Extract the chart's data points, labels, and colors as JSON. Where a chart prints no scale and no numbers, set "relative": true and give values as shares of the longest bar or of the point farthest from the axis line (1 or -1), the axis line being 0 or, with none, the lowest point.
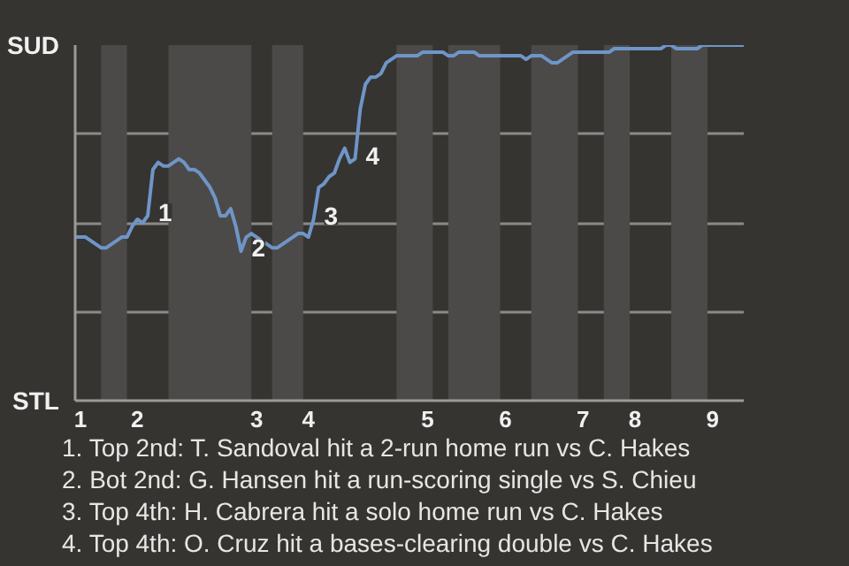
{
  "chart_data": {
    "type": "line",
    "relative": true,
    "categories": [
      null,
      "1",
      null,
      null,
      null,
      null,
      null,
      null,
      null,
      null,
      null,
      null,
      "2",
      null,
      null,
      null,
      null,
      null,
      null,
      null,
      null,
      null,
      null,
      null,
      null,
      null,
      null,
      null,
      null,
      null,
      null,
      null,
      null,
      null,
      null,
      "3",
      null,
      null,
      null,
      null,
      null,
      null,
      null,
      null,
      null,
      "4",
      null,
      null,
      null,
      null,
      null,
      null,
      null,
      null,
      null,
      null,
      null,
      null,
      null,
      null,
      null,
      null,
      null,
      null,
      null,
      null,
      null,
      null,
      "5",
      null,
      null,
      null,
      null,
      null,
      null,
      null,
      null,
      null,
      null,
      null,
      null,
      null,
      null,
      "6",
      null,
      null,
      null,
      null,
      null,
      null,
      null,
      null,
      null,
      null,
      null,
      null,
      null,
      null,
      "7",
      null,
      null,
      null,
      null,
      null,
      null,
      null,
      null,
      null,
      "8",
      null,
      null,
      null,
      null,
      null,
      null,
      null,
      null,
      null,
      null,
      null,
      null,
      null,
      null,
      "9",
      null,
      null,
      null,
      null,
      null,
      null
    ],
    "line_style": "solid",
    "grid": "y",
    "series": [
      {
        "color": "#6f95c8",
        "values": [
          0.46,
          0.46,
          0.46,
          0.45,
          0.44,
          0.43,
          0.43,
          0.44,
          0.45,
          0.46,
          0.46,
          0.49,
          0.51,
          0.5,
          0.52,
          0.65,
          0.67,
          0.66,
          0.66,
          0.67,
          0.68,
          0.67,
          0.65,
          0.65,
          0.64,
          0.62,
          0.6,
          0.57,
          0.52,
          0.52,
          0.54,
          0.49,
          0.42,
          0.46,
          0.47,
          0.46,
          0.45,
          0.44,
          0.43,
          0.43,
          0.44,
          0.45,
          0.46,
          0.47,
          0.47,
          0.46,
          0.51,
          0.6,
          0.61,
          0.63,
          0.64,
          0.68,
          0.71,
          0.67,
          0.68,
          0.82,
          0.89,
          0.91,
          0.91,
          0.92,
          0.95,
          0.96,
          0.97,
          0.97,
          0.97,
          0.97,
          0.97,
          0.98,
          0.98,
          0.98,
          0.98,
          0.98,
          0.97,
          0.97,
          0.98,
          0.98,
          0.98,
          0.98,
          0.97,
          0.97,
          0.97,
          0.97,
          0.97,
          0.97,
          0.97,
          0.97,
          0.97,
          0.96,
          0.97,
          0.97,
          0.97,
          0.96,
          0.95,
          0.95,
          0.96,
          0.97,
          0.98,
          0.98,
          0.98,
          0.98,
          0.98,
          0.98,
          0.98,
          0.98,
          0.99,
          0.99,
          0.99,
          0.99,
          0.99,
          0.99,
          0.99,
          0.99,
          0.99,
          0.99,
          1,
          1,
          0.99,
          0.99,
          0.99,
          0.99,
          0.99,
          1,
          1,
          1,
          1,
          1,
          1,
          1,
          1,
          1
        ]
      }
    ],
    "annotations": [
      "SUD",
      "STL",
      "1",
      "2",
      "3",
      "4",
      "1. Top 2nd: T. Sandoval hit a 2-run home run vs C. Hakes",
      "2. Bot 2nd: G. Hansen hit a run-scoring single vs S. Chieu",
      "3. Top 4th: H. Cabrera hit a solo home run vs C. Hakes",
      "4. Top 4th: O. Cruz hit a bases-clearing double vs C. Hakes"
    ]
  }
}
